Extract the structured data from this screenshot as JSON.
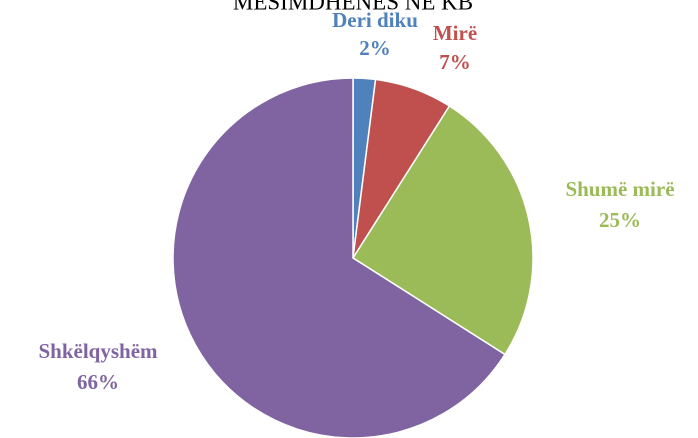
{
  "chart_data": {
    "type": "pie",
    "title": "MESIMDHENES NE KB",
    "categories": [
      "Deri diku",
      "Mirë",
      "Shumë mirë",
      "Shkëlqyshëm"
    ],
    "values": [
      2,
      7,
      25,
      66
    ],
    "value_labels": [
      "2%",
      "7%",
      "25%",
      "66%"
    ],
    "colors": [
      "#4f81bd",
      "#c0504d",
      "#9bbb59",
      "#8064a2"
    ]
  }
}
